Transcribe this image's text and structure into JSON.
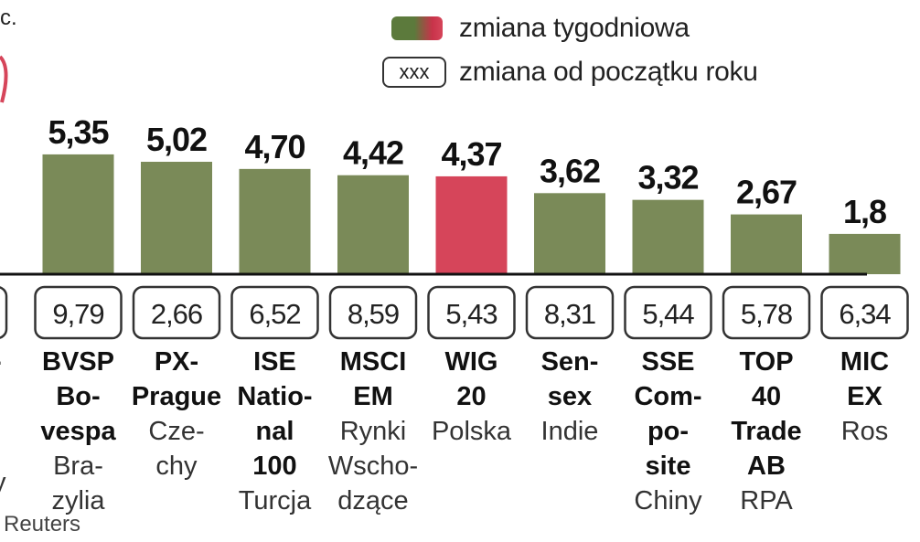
{
  "chart_data": {
    "type": "bar",
    "top_partial_text": "c.",
    "legend": {
      "weekly_label": "zmiana tygodniowa",
      "ytd_box": "xxx",
      "ytd_label": "zmiana od początku roku"
    },
    "source": "Reuters",
    "ylim": [
      0,
      7
    ],
    "grid": false,
    "colors": {
      "bar": "#7a8a58",
      "highlight": "#d6455a",
      "axis": "#111111"
    },
    "categories": [
      {
        "value": null,
        "ytd": "",
        "name": [
          "-"
        ],
        "country": [
          "y"
        ]
      },
      {
        "value": 5.35,
        "label": "5,35",
        "ytd": "9,79",
        "name": [
          "BVSP",
          "Bo-",
          "vespa"
        ],
        "country": [
          "Bra-",
          "zylia"
        ]
      },
      {
        "value": 5.02,
        "label": "5,02",
        "ytd": "2,66",
        "name": [
          "PX-",
          "Prague"
        ],
        "country": [
          "Cze-",
          "chy"
        ]
      },
      {
        "value": 4.7,
        "label": "4,70",
        "ytd": "6,52",
        "name": [
          "ISE",
          "Natio-",
          "nal",
          "100"
        ],
        "country": [
          "Turcja"
        ]
      },
      {
        "value": 4.42,
        "label": "4,42",
        "ytd": "8,59",
        "name": [
          "MSCI",
          "EM"
        ],
        "country": [
          "Rynki",
          "Wscho-",
          "dzące"
        ]
      },
      {
        "value": 4.37,
        "label": "4,37",
        "ytd": "5,43",
        "name": [
          "WIG",
          "20"
        ],
        "country": [
          "Polska"
        ],
        "highlight": true
      },
      {
        "value": 3.62,
        "label": "3,62",
        "ytd": "8,31",
        "name": [
          "Sen-",
          "sex"
        ],
        "country": [
          "Indie"
        ]
      },
      {
        "value": 3.32,
        "label": "3,32",
        "ytd": "5,44",
        "name": [
          "SSE",
          "Com-",
          "po-",
          "site"
        ],
        "country": [
          "Chiny"
        ]
      },
      {
        "value": 2.67,
        "label": "2,67",
        "ytd": "5,78",
        "name": [
          "TOP",
          "40",
          "Trade",
          "AB"
        ],
        "country": [
          "RPA"
        ]
      },
      {
        "value": 1.8,
        "label": "1,8",
        "ytd": "6,34",
        "name": [
          "MIC",
          "EX"
        ],
        "country": [
          "Ros"
        ]
      }
    ]
  }
}
